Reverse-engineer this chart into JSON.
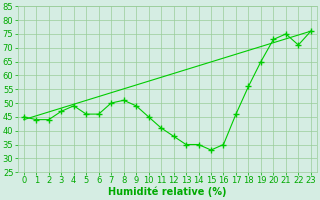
{
  "line1_x": [
    0,
    1,
    2,
    3,
    4,
    5,
    6,
    7,
    8,
    9,
    10,
    11,
    12,
    13,
    14,
    15,
    16,
    17,
    18,
    19,
    20,
    21,
    22,
    23
  ],
  "line1_y": [
    45,
    44,
    44,
    47,
    49,
    46,
    46,
    50,
    51,
    49,
    45,
    41,
    38,
    35,
    35,
    33,
    35,
    46,
    56,
    65,
    73,
    75,
    71,
    76
  ],
  "line2_x": [
    0,
    23
  ],
  "line2_y": [
    44,
    76
  ],
  "color": "#00cc00",
  "bg_color": "#d5ede3",
  "grid_color": "#99cc99",
  "xlabel": "Humidité relative (%)",
  "xlabel_color": "#00aa00",
  "xlabel_fontsize": 7,
  "tick_color": "#00aa00",
  "tick_fontsize": 6,
  "ylim": [
    25,
    85
  ],
  "xlim": [
    -0.5,
    23.5
  ],
  "yticks": [
    25,
    30,
    35,
    40,
    45,
    50,
    55,
    60,
    65,
    70,
    75,
    80,
    85
  ],
  "xticks": [
    0,
    1,
    2,
    3,
    4,
    5,
    6,
    7,
    8,
    9,
    10,
    11,
    12,
    13,
    14,
    15,
    16,
    17,
    18,
    19,
    20,
    21,
    22,
    23
  ]
}
